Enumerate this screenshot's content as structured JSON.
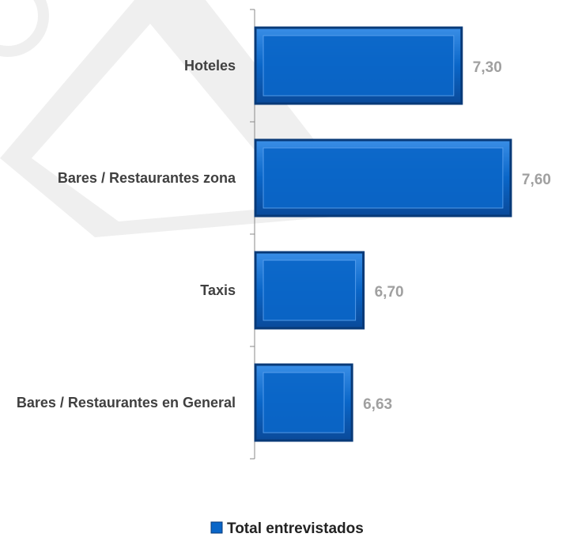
{
  "chart_data": {
    "type": "bar",
    "orientation": "horizontal",
    "categories": [
      "Hoteles",
      "Bares / Restaurantes zona",
      "Taxis",
      "Bares / Restaurantes en General"
    ],
    "series": [
      {
        "name": "Total entrevistados",
        "color": "#0a66c8",
        "values": [
          7.3,
          7.6,
          6.7,
          6.63
        ],
        "value_labels": [
          "7,30",
          "7,60",
          "6,70",
          "6,63"
        ]
      }
    ],
    "xlim": [
      6.04,
      7.9
    ],
    "legend": "bottom"
  }
}
